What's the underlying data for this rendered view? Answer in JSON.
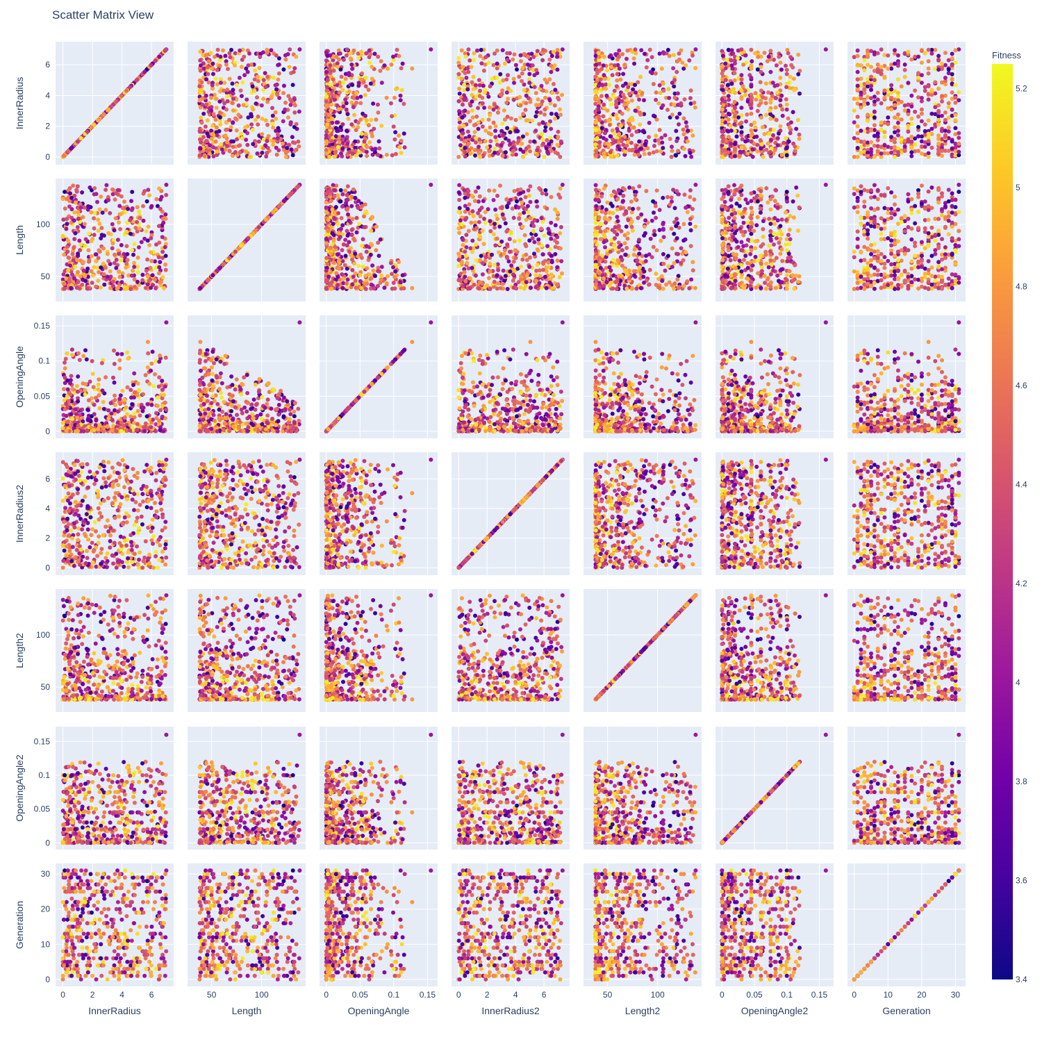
{
  "title": "Scatter Matrix View",
  "colorbar": {
    "title": "Fitness",
    "min": 3.4,
    "max": 5.25,
    "ticks": [
      "5.2",
      "5",
      "4.8",
      "4.6",
      "4.4",
      "4.2",
      "4",
      "3.8",
      "3.6",
      "3.4"
    ],
    "colorscale": [
      "#0d0887",
      "#46039f",
      "#7201a8",
      "#9c179e",
      "#bd3786",
      "#d8576b",
      "#ed7953",
      "#fb9f3a",
      "#fdca26",
      "#f0f921"
    ]
  },
  "chart_data": {
    "type": "scatter",
    "title": "Scatter Matrix View",
    "color_variable": "Fitness",
    "background": "#e5ecf6",
    "dimensions": [
      {
        "name": "InnerRadius",
        "range": [
          -0.5,
          7.5
        ],
        "ticks": [
          0,
          2,
          4,
          6
        ],
        "tick_labels": [
          "0",
          "2",
          "4",
          "6"
        ],
        "max": 7.0
      },
      {
        "name": "Length",
        "range": [
          26,
          144
        ],
        "ticks": [
          50,
          100
        ],
        "tick_labels": [
          "50",
          "100"
        ],
        "min": 38,
        "max": 138
      },
      {
        "name": "OpeningAngle",
        "range": [
          -0.01,
          0.165
        ],
        "ticks": [
          0,
          0.05,
          0.1,
          0.15
        ],
        "tick_labels": [
          "0",
          "0.05",
          "0.1",
          "0.15"
        ],
        "max": 0.155
      },
      {
        "name": "InnerRadius2",
        "range": [
          -0.5,
          7.8
        ],
        "ticks": [
          0,
          2,
          4,
          6
        ],
        "tick_labels": [
          "0",
          "2",
          "4",
          "6"
        ],
        "max": 7.3
      },
      {
        "name": "Length2",
        "range": [
          26,
          144
        ],
        "ticks": [
          50,
          100
        ],
        "tick_labels": [
          "50",
          "100"
        ],
        "min": 38,
        "max": 138
      },
      {
        "name": "OpeningAngle2",
        "range": [
          -0.01,
          0.172
        ],
        "ticks": [
          0,
          0.05,
          0.1,
          0.15
        ],
        "tick_labels": [
          "0",
          "0.05",
          "0.1",
          "0.15"
        ],
        "max": 0.16
      },
      {
        "name": "Generation",
        "range": [
          -2,
          33
        ],
        "ticks": [
          0,
          10,
          20,
          30
        ],
        "tick_labels": [
          "0",
          "10",
          "20",
          "30"
        ],
        "max": 31
      }
    ],
    "sample_points": {
      "columns": [
        "InnerRadius",
        "Length",
        "OpeningAngle",
        "InnerRadius2",
        "Length2",
        "OpeningAngle2",
        "Generation",
        "Fitness"
      ],
      "rows": [
        [
          0.0,
          38,
          0.0,
          0.0,
          38,
          0.0,
          0,
          4.7
        ],
        [
          7.0,
          138,
          0.155,
          7.3,
          138,
          0.16,
          31,
          4.0
        ],
        [
          2.0,
          86,
          0.04,
          2.6,
          45,
          0.09,
          1,
          4.9
        ],
        [
          3.2,
          62,
          0.02,
          1.8,
          104,
          0.03,
          12,
          3.9
        ],
        [
          0.5,
          125,
          0.01,
          4.0,
          60,
          0.05,
          25,
          4.3
        ],
        [
          5.6,
          44,
          0.08,
          0.3,
          42,
          0.12,
          6,
          4.6
        ],
        [
          1.2,
          101,
          0.03,
          3.3,
          120,
          0.01,
          18,
          3.6
        ],
        [
          6.3,
          48,
          0.01,
          5.9,
          90,
          0.02,
          28,
          4.2
        ]
      ]
    },
    "generated_point_count": 500,
    "note_diagonal": "diagonal panels plot each dimension against itself"
  }
}
